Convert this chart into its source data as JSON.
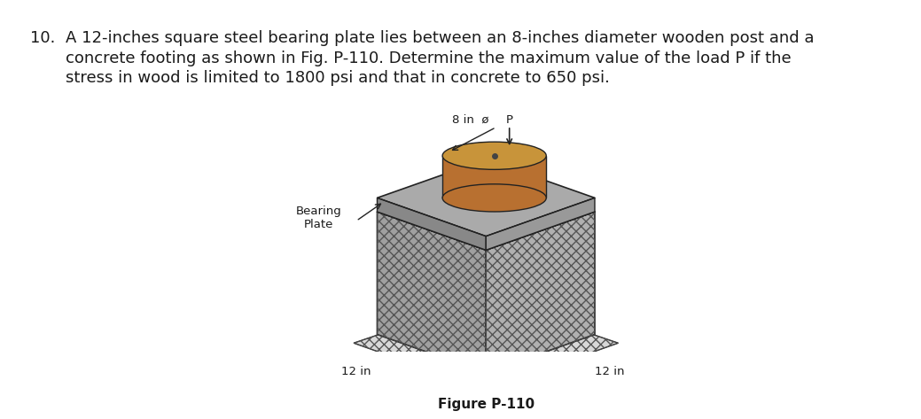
{
  "title_num": "10.",
  "problem_text_line1": "A 12-inches square steel bearing plate lies between an 8-inches diameter wooden post and a",
  "problem_text_line2": "concrete footing as shown in Fig. P-110. Determine the maximum value of the load P if the",
  "problem_text_line3": "stress in wood is limited to 1800 psi and that in concrete to 650 psi.",
  "label_8in": "8 in  ø",
  "label_P": "P",
  "label_bearing_plate": "Bearing\nPlate",
  "label_12in_left": "12 in",
  "label_12in_right": "12 in",
  "figure_label": "Figure P-110",
  "bg_color": "#ffffff",
  "text_color": "#1a1a1a",
  "wood_top_color": "#c8943a",
  "wood_side_color": "#b87030",
  "plate_top_color": "#aaaaaa",
  "plate_left_color": "#888888",
  "plate_right_color": "#999999",
  "concrete_top_color": "#c0c0c0",
  "concrete_left_color": "#a0a0a0",
  "concrete_right_color": "#b0b0b0",
  "ground_color": "#d8d8d8",
  "edge_color": "#222222",
  "hatch_color": "#555555",
  "font_size_problem": 13.0,
  "font_size_labels": 9.5,
  "font_size_figure": 11.0
}
